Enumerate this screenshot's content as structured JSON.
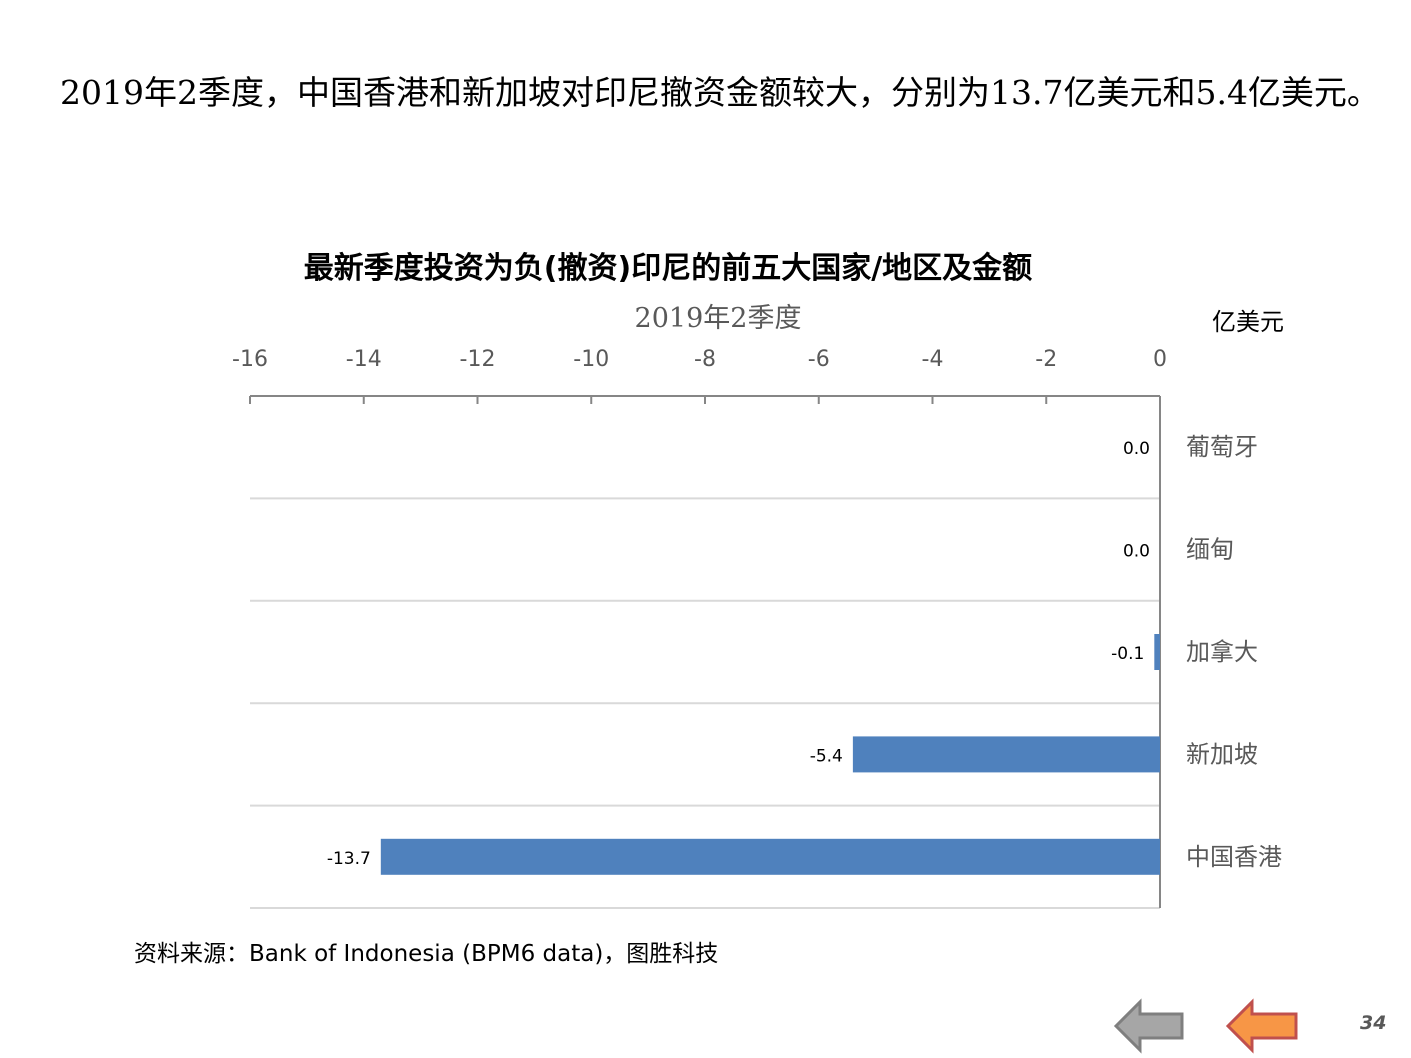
{
  "headline": "2019年2季度，中国香港和新加坡对印尼撤资金额较大，分别为13.7亿美元和5.4亿美元。",
  "chart_data": {
    "type": "bar",
    "orientation": "horizontal",
    "title": "最新季度投资为负(撤资)印尼的前五大国家/地区及金额",
    "subtitle": "2019年2季度",
    "unit_label": "亿美元",
    "categories": [
      "葡萄牙",
      "缅甸",
      "加拿大",
      "新加坡",
      "中国香港"
    ],
    "values": [
      0.0,
      0.0,
      -0.1,
      -5.4,
      -13.7
    ],
    "data_labels": [
      "0.0",
      "0.0",
      "-0.1",
      "-5.4",
      "-13.7"
    ],
    "xlim": [
      -16,
      0
    ],
    "xticks": [
      -16,
      -14,
      -12,
      -10,
      -8,
      -6,
      -4,
      -2,
      0
    ],
    "axis_position": "top",
    "grid": "horizontal-lines",
    "bar_color": "#4f81bd",
    "legend": "none"
  },
  "source": "资料来源：Bank of Indonesia (BPM6 data)，图胜科技",
  "nav": {
    "prev_icon": "left-arrow-icon",
    "prev_color": "#a6a6a6",
    "next_icon": "left-arrow-icon",
    "next_color": "#f79646"
  },
  "page_number": "34"
}
